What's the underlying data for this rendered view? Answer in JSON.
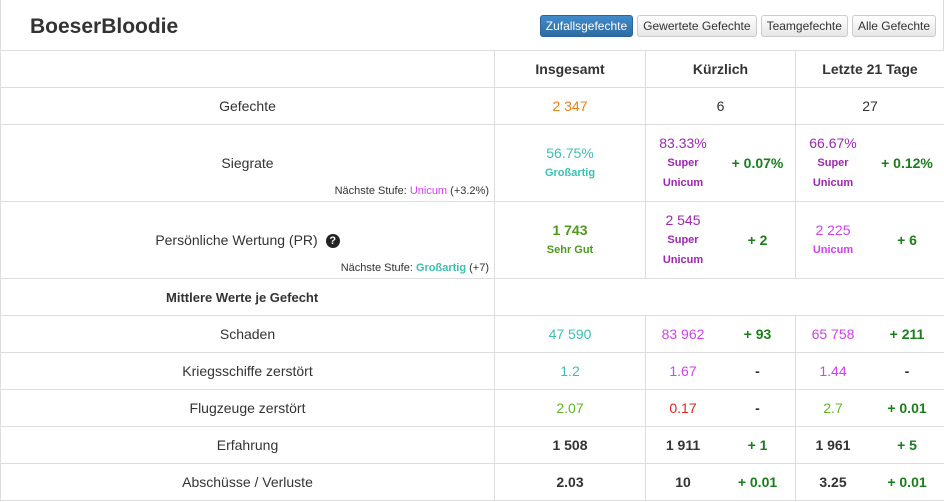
{
  "player": {
    "name": "BoeserBloodie"
  },
  "tabs": [
    {
      "label": "Zufallsgefechte",
      "active": true
    },
    {
      "label": "Gewertete Gefechte",
      "active": false
    },
    {
      "label": "Teamgefechte",
      "active": false
    },
    {
      "label": "Alle Gefechte",
      "active": false
    }
  ],
  "columns": {
    "total": "Insgesamt",
    "recent": "Kürzlich",
    "last21": "Letzte 21 Tage"
  },
  "battles": {
    "label": "Gefechte",
    "total": "2 347",
    "recent": "6",
    "last21": "27"
  },
  "winrate": {
    "label": "Siegrate",
    "next_prefix": "Nächste Stufe:",
    "next_tier": "Unicum",
    "next_delta": "(+3.2%)",
    "total": "56.75%",
    "total_rating": "Großartig",
    "recent": "83.33%",
    "recent_rating_1": "Super",
    "recent_rating_2": "Unicum",
    "recent_delta": "+ 0.07%",
    "last21": "66.67%",
    "last21_rating_1": "Super",
    "last21_rating_2": "Unicum",
    "last21_delta": "+ 0.12%"
  },
  "pr": {
    "label": "Persönliche Wertung (PR)",
    "help_icon": "question-circle-icon",
    "help_glyph": "?",
    "next_prefix": "Nächste Stufe:",
    "next_tier": "Großartig",
    "next_delta": "(+7)",
    "total": "1 743",
    "total_rating": "Sehr Gut",
    "recent": "2 545",
    "recent_rating_1": "Super",
    "recent_rating_2": "Unicum",
    "recent_delta": "+ 2",
    "last21": "2 225",
    "last21_rating": "Unicum",
    "last21_delta": "+ 6"
  },
  "section_title": "Mittlere Werte je Gefecht",
  "rows": [
    {
      "label": "Schaden",
      "total": "47 590",
      "recent": "83 962",
      "recent_delta": "+ 93",
      "last21": "65 758",
      "last21_delta": "+ 211"
    },
    {
      "label": "Kriegsschiffe zerstört",
      "total": "1.2",
      "recent": "1.67",
      "recent_delta": "-",
      "last21": "1.44",
      "last21_delta": "-"
    },
    {
      "label": "Flugzeuge zerstört",
      "total": "2.07",
      "recent": "0.17",
      "recent_delta": "-",
      "last21": "2.7",
      "last21_delta": "+ 0.01"
    },
    {
      "label": "Erfahrung",
      "total": "1 508",
      "recent": "1 911",
      "recent_delta": "+ 1",
      "last21": "1 961",
      "last21_delta": "+ 5"
    },
    {
      "label": "Abschüsse / Verluste",
      "total": "2.03",
      "recent": "10",
      "recent_delta": "+ 0.01",
      "last21": "3.25",
      "last21_delta": "+ 0.01"
    }
  ],
  "colors": {
    "orange": "#f07f14",
    "teal": "#3cc0b4",
    "purple": "#9d27b0",
    "magenta": "#d042f0",
    "green": "#4c9a1e",
    "dark_green": "#1a7e1a",
    "light_green": "#5fb824",
    "red": "#e0251a",
    "active_tab": "#428bca"
  }
}
